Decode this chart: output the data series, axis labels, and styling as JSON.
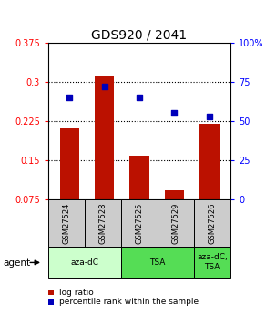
{
  "title": "GDS920 / 2041",
  "samples": [
    "GSM27524",
    "GSM27528",
    "GSM27525",
    "GSM27529",
    "GSM27526"
  ],
  "log_ratio": [
    0.21,
    0.31,
    0.158,
    0.093,
    0.22
  ],
  "percentile_rank_pct": [
    65,
    72,
    65,
    55,
    53
  ],
  "ylim_left": [
    0.075,
    0.375
  ],
  "ylim_right": [
    0,
    100
  ],
  "yticks_left": [
    0.075,
    0.15,
    0.225,
    0.3,
    0.375
  ],
  "yticks_right": [
    0,
    25,
    50,
    75,
    100
  ],
  "bar_color": "#bb1100",
  "point_color": "#0000bb",
  "group_defs": [
    {
      "indices": [
        0,
        1
      ],
      "label": "aza-dC",
      "color": "#ccffcc"
    },
    {
      "indices": [
        2,
        3
      ],
      "label": "TSA",
      "color": "#55dd55"
    },
    {
      "indices": [
        4
      ],
      "label": "aza-dC,\nTSA",
      "color": "#55dd55"
    }
  ],
  "agent_label": "agent",
  "legend_bar_label": "log ratio",
  "legend_point_label": "percentile rank within the sample",
  "title_fontsize": 10,
  "tick_fontsize": 7,
  "bg_color_samples": "#cccccc",
  "grid_color": "black"
}
